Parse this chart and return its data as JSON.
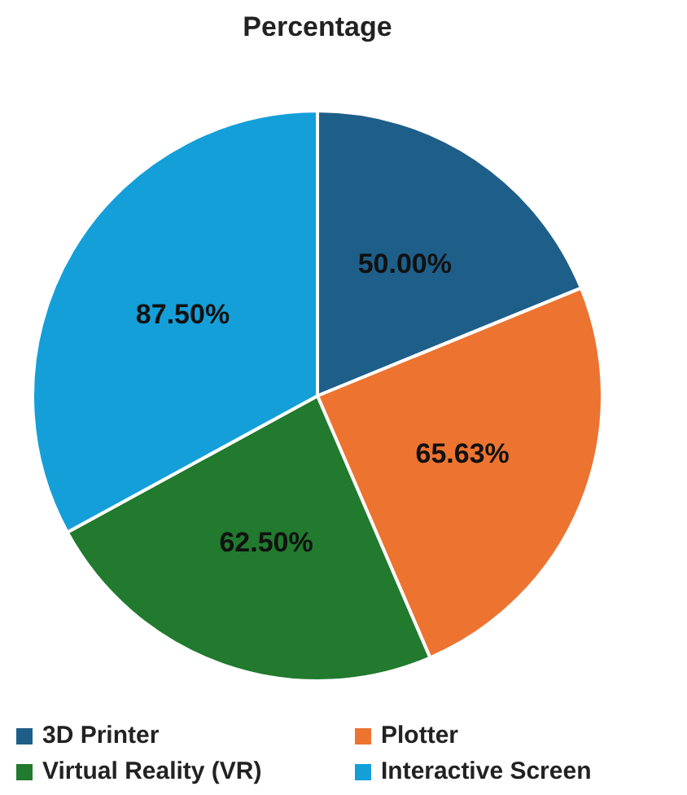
{
  "chart_data": {
    "type": "pie",
    "title": "Percentage",
    "categories": [
      "3D Printer",
      "Plotter",
      "Virtual Reality (VR)",
      "Interactive Screen"
    ],
    "values": [
      50,
      65.63,
      62.5,
      87.5
    ],
    "value_labels": [
      "50.00%",
      "65.63%",
      "62.50%",
      "87.50%"
    ],
    "colors": [
      "#1e5f8a",
      "#ec7430",
      "#217a2e",
      "#149fd9"
    ],
    "legend": "bottom"
  }
}
